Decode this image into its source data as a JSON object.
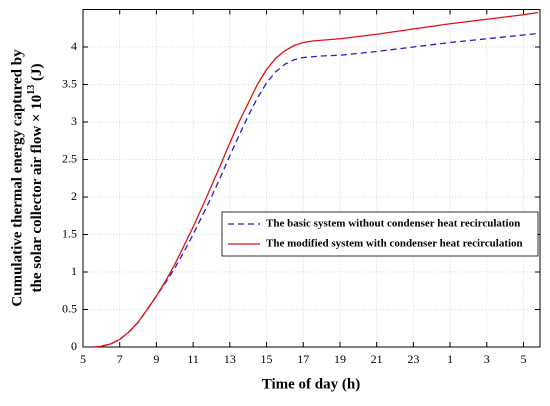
{
  "chart_data": {
    "type": "line",
    "xlabel": "Time of day (h)",
    "ylabel": {
      "line1": "Cumulative thermal energy captured by",
      "line2_before": "the solar collector air flow × 10",
      "line2_sup": "13",
      "line2_after": " (J)"
    },
    "x": [
      5.5,
      6,
      6.5,
      7,
      7.5,
      8,
      8.5,
      9,
      9.5,
      10,
      10.5,
      11,
      11.5,
      12,
      12.5,
      13,
      13.5,
      14,
      14.5,
      15,
      15.5,
      16,
      16.5,
      17,
      17.5,
      18,
      19,
      21,
      23,
      25,
      27,
      29,
      29.8
    ],
    "series": [
      {
        "name": "The basic system without condenser heat recirculation",
        "color": "#1f1fd0",
        "dash": "dashed",
        "values": [
          0,
          0.01,
          0.04,
          0.1,
          0.2,
          0.33,
          0.5,
          0.68,
          0.86,
          1.05,
          1.27,
          1.5,
          1.75,
          2.0,
          2.27,
          2.55,
          2.82,
          3.08,
          3.32,
          3.52,
          3.67,
          3.77,
          3.83,
          3.86,
          3.87,
          3.88,
          3.89,
          3.94,
          4.0,
          4.06,
          4.11,
          4.16,
          4.18
        ]
      },
      {
        "name": "The modified system with condenser heat recirculation",
        "color": "#e01010",
        "dash": "solid",
        "values": [
          0,
          0.01,
          0.04,
          0.1,
          0.2,
          0.33,
          0.5,
          0.68,
          0.88,
          1.1,
          1.35,
          1.6,
          1.87,
          2.15,
          2.43,
          2.72,
          3.0,
          3.25,
          3.5,
          3.7,
          3.85,
          3.95,
          4.02,
          4.06,
          4.08,
          4.09,
          4.11,
          4.17,
          4.24,
          4.31,
          4.37,
          4.43,
          4.46
        ]
      }
    ],
    "xlim": [
      5,
      29.9
    ],
    "ylim": [
      0,
      4.5
    ],
    "xticks": [
      5,
      7,
      9,
      11,
      13,
      15,
      17,
      19,
      21,
      23,
      {
        "value": 25,
        "label": "1"
      },
      {
        "value": 27,
        "label": "3"
      },
      {
        "value": 29,
        "label": "5"
      }
    ],
    "yticks": [
      0,
      0.5,
      1,
      1.5,
      2,
      2.5,
      3,
      3.5,
      4
    ],
    "grid": true,
    "legend": "right"
  }
}
